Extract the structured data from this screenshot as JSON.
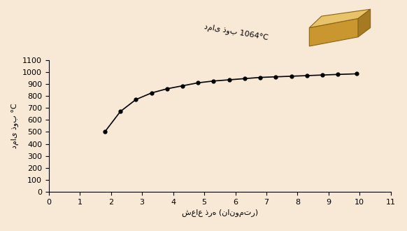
{
  "chart_data": {
    "type": "line",
    "annotation": "دمای ذوب 1064°C",
    "x_label": "شعاع ذره (نانومتر)",
    "y_label": "دمای ذوب °C",
    "x": [
      1.8,
      2.3,
      2.8,
      3.3,
      3.8,
      4.3,
      4.8,
      5.3,
      5.8,
      6.3,
      6.8,
      7.3,
      7.8,
      8.3,
      8.8,
      9.3,
      9.9
    ],
    "values": [
      500,
      670,
      770,
      825,
      860,
      885,
      910,
      925,
      935,
      945,
      955,
      960,
      965,
      970,
      975,
      980,
      985
    ],
    "color": "#000000",
    "marker": "o",
    "line_style": "solid",
    "xlim": [
      0,
      11
    ],
    "xticks": [
      0,
      1,
      2,
      3,
      4,
      5,
      6,
      7,
      8,
      9,
      10,
      11
    ],
    "ylim": [
      0,
      1100
    ],
    "yticks": [
      0,
      100,
      200,
      300,
      400,
      500,
      600,
      700,
      800,
      900,
      1000,
      1100
    ],
    "grid": false
  }
}
